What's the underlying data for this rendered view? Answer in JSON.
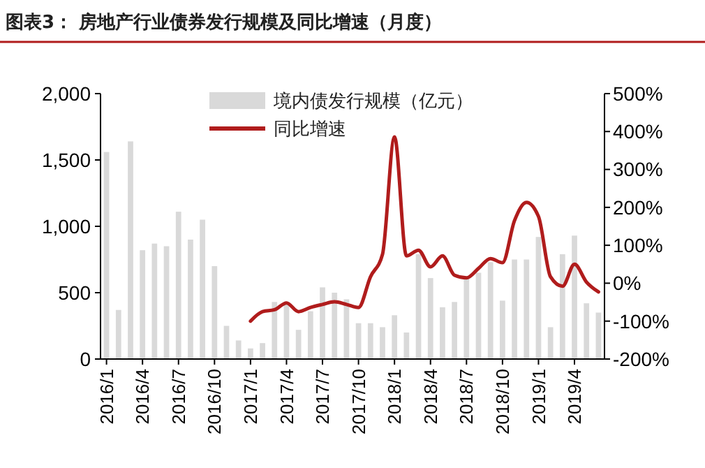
{
  "chart_data": {
    "type": "bar",
    "title": "图表3：  房地产行业债券发行规模及同比增速（月度）",
    "categories": [
      "2016/1",
      null,
      null,
      "2016/4",
      null,
      null,
      "2016/7",
      null,
      null,
      "2016/10",
      null,
      null,
      "2017/1",
      null,
      null,
      "2017/4",
      null,
      null,
      "2017/7",
      null,
      null,
      "2017/10",
      null,
      null,
      "2018/1",
      null,
      null,
      "2018/4",
      null,
      null,
      "2018/7",
      null,
      null,
      "2018/10",
      null,
      null,
      "2019/1",
      null,
      null,
      "2019/4",
      null,
      null
    ],
    "series": [
      {
        "name": "境内债发行规模（亿元）",
        "color": "#d9d9d9",
        "values": [
          1560,
          370,
          1640,
          820,
          870,
          850,
          1110,
          900,
          1050,
          700,
          250,
          140,
          80,
          120,
          430,
          410,
          220,
          360,
          540,
          500,
          450,
          270,
          270,
          240,
          330,
          200,
          790,
          610,
          390,
          430,
          620,
          650,
          730,
          440,
          750,
          750,
          920,
          240,
          790,
          930,
          420,
          350
        ]
      },
      {
        "name": "同比增速",
        "type": "line",
        "axis": "y2",
        "color": "#b01c1c",
        "values": [
          null,
          null,
          null,
          null,
          null,
          null,
          null,
          null,
          null,
          null,
          null,
          null,
          -100,
          -75,
          -70,
          -52,
          -75,
          -64,
          -56,
          -49,
          -56,
          -64,
          17,
          76,
          386,
          72,
          87,
          43,
          72,
          21,
          14,
          39,
          65,
          54,
          165,
          213,
          176,
          17,
          -8,
          50,
          3,
          -23
        ]
      }
    ],
    "ylim": [
      0,
      2000
    ],
    "yticks": [
      0,
      500,
      {
        "value": 1000,
        "label": "1,000"
      },
      {
        "value": 1500,
        "label": "1,500"
      },
      {
        "value": 2000,
        "label": "2,000"
      }
    ],
    "y2lim": [
      -200,
      500
    ],
    "y2ticks": [
      {
        "value": -200,
        "label": "-200%"
      },
      {
        "value": -100,
        "label": "-100%"
      },
      {
        "value": 0,
        "label": "0%"
      },
      {
        "value": 100,
        "label": "100%"
      },
      {
        "value": 200,
        "label": "200%"
      },
      {
        "value": 300,
        "label": "300%"
      },
      {
        "value": 400,
        "label": "400%"
      },
      {
        "value": 500,
        "label": "500%"
      }
    ],
    "legend": "top",
    "grid": false
  }
}
